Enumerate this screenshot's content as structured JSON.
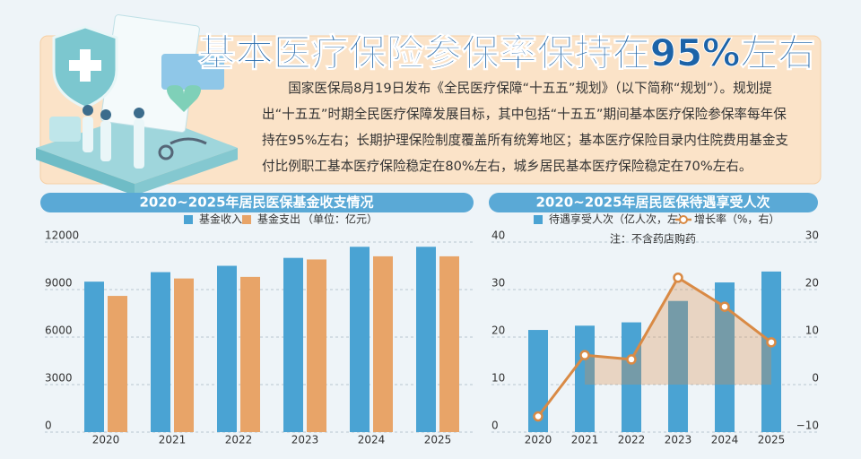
{
  "header": {
    "title": "基本医疗保险参保率保持在95%左右",
    "body": "国家医保局8月19日发布《全民医疗保障“十五五”规划》（以下简称“规划”）。规划提出“十五五”时期全民医疗保障发展目标，其中包括“十五五”期间基本医疗保险参保率每年保持在95%左右；长期护理保险制度覆盖所有统筹地区；基本医疗保险目录内住院费用基金支付比例职工基本医疗保险稳定在80%左右，城乡居民基本医疗保险稳定在70%左右。"
  },
  "chart_data": [
    {
      "type": "bar",
      "title": "2020~2025年居民医保基金收支情况",
      "unit_note": "（单位：亿元）",
      "categories": [
        "2020",
        "2021",
        "2022",
        "2023",
        "2024",
        "2025"
      ],
      "series": [
        {
          "name": "基金收入",
          "color": "#4aa3d3",
          "values": [
            9500,
            10100,
            10500,
            11000,
            11700,
            11700
          ]
        },
        {
          "name": "基金支出",
          "color": "#e8a468",
          "values": [
            8600,
            9700,
            9800,
            10900,
            11100,
            11100
          ]
        }
      ],
      "ylim": [
        0,
        12000
      ],
      "yticks": [
        0,
        3000,
        6000,
        9000,
        12000
      ],
      "grid": true
    },
    {
      "type": "combo",
      "title": "2020~2025年居民医保待遇享受人次",
      "note": "注：不含药店购药",
      "categories": [
        "2020",
        "2021",
        "2022",
        "2023",
        "2024",
        "2025"
      ],
      "series": [
        {
          "name": "待遇享受人次（亿人次，左）",
          "type": "bar",
          "color": "#4aa3d3",
          "values": [
            21.5,
            22.4,
            23.1,
            27.6,
            31.5,
            33.8
          ]
        },
        {
          "name": "增长率（%，右）",
          "type": "line",
          "axis": "y2",
          "color": "#d98a45",
          "values": [
            -6.7,
            6.2,
            5.3,
            22.5,
            16.4,
            8.9
          ]
        }
      ],
      "ylim": [
        0,
        40
      ],
      "yticks": [
        0,
        10,
        20,
        30,
        40
      ],
      "y2lim": [
        -10,
        30
      ],
      "y2ticks": [
        {
          "value": -10,
          "label": "−10"
        },
        0,
        10,
        20,
        30
      ],
      "grid": true
    }
  ]
}
